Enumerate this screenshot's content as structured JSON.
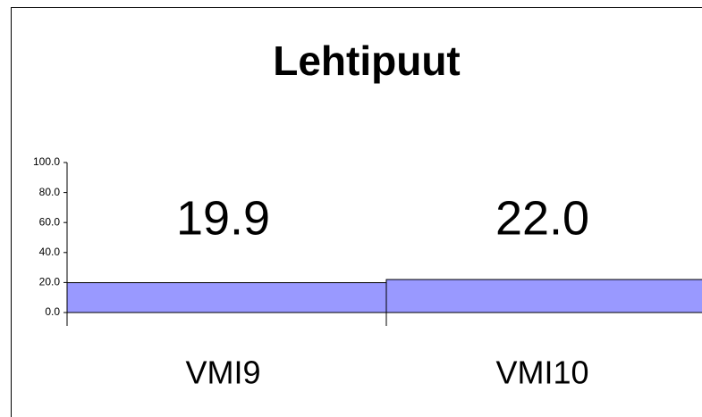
{
  "chart_data": {
    "type": "bar",
    "title": "Lehtipuut",
    "categories": [
      "VMI9",
      "VMI10"
    ],
    "values": [
      19.9,
      22.0
    ],
    "value_labels": [
      "19.9",
      "22.0"
    ],
    "color": "#9999ff",
    "ylim": [
      0,
      100
    ],
    "yticks": [
      {
        "value": 0,
        "label": "0.0"
      },
      {
        "value": 20,
        "label": "20.0"
      },
      {
        "value": 40,
        "label": "40.0"
      },
      {
        "value": 60,
        "label": "60.0"
      },
      {
        "value": 80,
        "label": "80.0"
      },
      {
        "value": 100,
        "label": "100.0"
      }
    ],
    "grid": false
  }
}
